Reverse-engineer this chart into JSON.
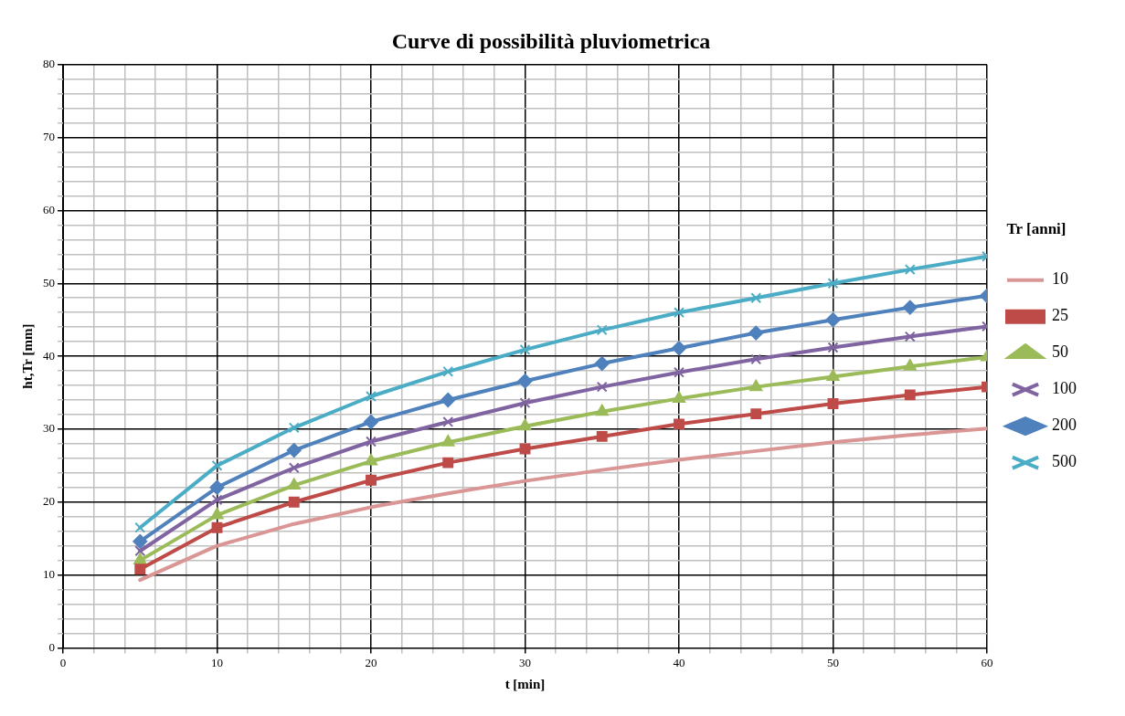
{
  "chart_data": {
    "type": "line",
    "title": "Curve di possibilità pluviometrica",
    "xlabel": "t [min]",
    "ylabel": "ht,Tr [mm]",
    "legend_title": "Tr [anni]",
    "legend": "right",
    "grid": true,
    "x": [
      5,
      10,
      15,
      20,
      25,
      30,
      35,
      40,
      45,
      50,
      55,
      60
    ],
    "xlim": [
      0,
      60
    ],
    "ylim": [
      0,
      80
    ],
    "xticks": [
      0,
      {
        "value": 2,
        "label": null
      },
      {
        "value": 4,
        "label": null
      },
      {
        "value": 6,
        "label": null
      },
      {
        "value": 8,
        "label": null
      },
      10,
      {
        "value": 12,
        "label": null
      },
      {
        "value": 14,
        "label": null
      },
      {
        "value": 16,
        "label": null
      },
      {
        "value": 18,
        "label": null
      },
      20,
      {
        "value": 22,
        "label": null
      },
      {
        "value": 24,
        "label": null
      },
      {
        "value": 26,
        "label": null
      },
      {
        "value": 28,
        "label": null
      },
      30,
      {
        "value": 32,
        "label": null
      },
      {
        "value": 34,
        "label": null
      },
      {
        "value": 36,
        "label": null
      },
      {
        "value": 38,
        "label": null
      },
      40,
      {
        "value": 42,
        "label": null
      },
      {
        "value": 44,
        "label": null
      },
      {
        "value": 46,
        "label": null
      },
      {
        "value": 48,
        "label": null
      },
      50,
      {
        "value": 52,
        "label": null
      },
      {
        "value": 54,
        "label": null
      },
      {
        "value": 56,
        "label": null
      },
      {
        "value": 58,
        "label": null
      },
      60
    ],
    "yticks": [
      0,
      {
        "value": 2,
        "label": null
      },
      {
        "value": 4,
        "label": null
      },
      {
        "value": 6,
        "label": null
      },
      {
        "value": 8,
        "label": null
      },
      10,
      {
        "value": 12,
        "label": null
      },
      {
        "value": 14,
        "label": null
      },
      {
        "value": 16,
        "label": null
      },
      {
        "value": 18,
        "label": null
      },
      20,
      {
        "value": 22,
        "label": null
      },
      {
        "value": 24,
        "label": null
      },
      {
        "value": 26,
        "label": null
      },
      {
        "value": 28,
        "label": null
      },
      30,
      {
        "value": 32,
        "label": null
      },
      {
        "value": 34,
        "label": null
      },
      {
        "value": 36,
        "label": null
      },
      {
        "value": 38,
        "label": null
      },
      40,
      {
        "value": 42,
        "label": null
      },
      {
        "value": 44,
        "label": null
      },
      {
        "value": 46,
        "label": null
      },
      {
        "value": 48,
        "label": null
      },
      50,
      {
        "value": 52,
        "label": null
      },
      {
        "value": 54,
        "label": null
      },
      {
        "value": 56,
        "label": null
      },
      {
        "value": 58,
        "label": null
      },
      60,
      {
        "value": 62,
        "label": null
      },
      {
        "value": 64,
        "label": null
      },
      {
        "value": 66,
        "label": null
      },
      {
        "value": 68,
        "label": null
      },
      70,
      {
        "value": 72,
        "label": null
      },
      {
        "value": 74,
        "label": null
      },
      {
        "value": 76,
        "label": null
      },
      {
        "value": 78,
        "label": null
      },
      80
    ],
    "series": [
      {
        "name": "10",
        "color": "#d99694",
        "marker": "none",
        "values": [
          9.3,
          14,
          17,
          19.3,
          21.2,
          22.9,
          24.4,
          25.8,
          27,
          28.2,
          29.2,
          30.1
        ]
      },
      {
        "name": "25",
        "color": "#be4b48",
        "marker": "square",
        "values": [
          10.8,
          16.5,
          20,
          23,
          25.4,
          27.3,
          29,
          30.7,
          32.1,
          33.5,
          34.7,
          35.8
        ]
      },
      {
        "name": "50",
        "color": "#9bbb59",
        "marker": "triangle",
        "values": [
          12,
          18.2,
          22.3,
          25.6,
          28.2,
          30.4,
          32.4,
          34.2,
          35.8,
          37.2,
          38.6,
          39.9
        ]
      },
      {
        "name": "100",
        "color": "#8064a2",
        "marker": "cross",
        "values": [
          13.3,
          20.3,
          24.7,
          28.3,
          31,
          33.6,
          35.8,
          37.8,
          39.6,
          41.2,
          42.7,
          44.1
        ]
      },
      {
        "name": "200",
        "color": "#4f81bd",
        "marker": "diamond",
        "values": [
          14.6,
          22,
          27.1,
          31,
          34,
          36.6,
          39,
          41.1,
          43.2,
          45,
          46.7,
          48.3
        ]
      },
      {
        "name": "500",
        "color": "#4bacc6",
        "marker": "cross",
        "values": [
          16.5,
          25,
          30.2,
          34.5,
          37.9,
          40.9,
          43.6,
          46,
          48,
          50,
          51.9,
          53.7
        ]
      }
    ]
  }
}
